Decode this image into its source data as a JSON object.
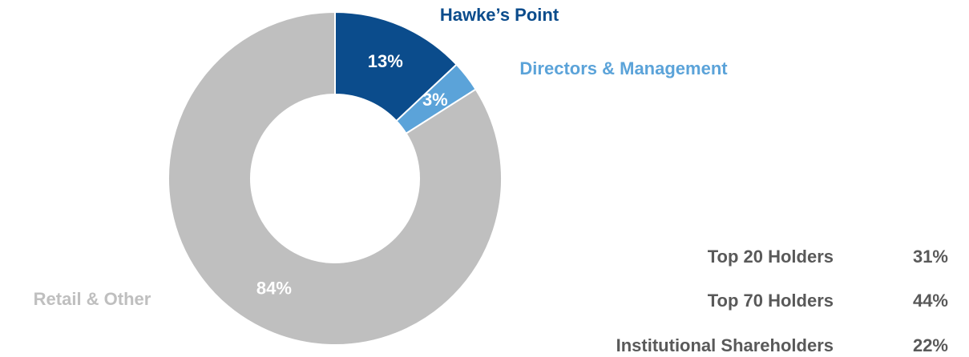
{
  "chart_data": {
    "type": "pie",
    "categories": [
      "Hawke’s Point",
      "Directors & Management",
      "Retail & Other"
    ],
    "values": [
      13,
      3,
      84
    ],
    "value_labels": [
      "13%",
      "3%",
      "84%"
    ],
    "colors": [
      "#0b4c8c",
      "#5ba3d9",
      "#bfbfbf"
    ]
  },
  "holders": {
    "rows": [
      [
        "Top 20 Holders",
        "31%"
      ],
      [
        "Top 70 Holders",
        "44%"
      ],
      [
        "Institutional Shareholders",
        "22%"
      ]
    ]
  }
}
